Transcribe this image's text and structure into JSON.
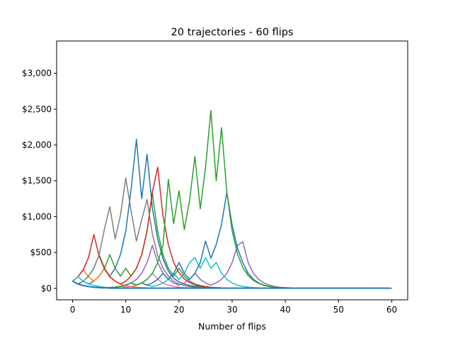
{
  "chart_data": {
    "type": "line",
    "title": "20 trajectories - 60 flips",
    "xlabel": "Number of flips",
    "ylabel": "",
    "xlim": [
      -3,
      63
    ],
    "ylim": [
      -160,
      3450
    ],
    "xticks": [
      0,
      10,
      20,
      30,
      40,
      50,
      60
    ],
    "yticks": [
      0,
      500,
      1000,
      1500,
      2000,
      2500,
      3000
    ],
    "ytick_labels": [
      "$0",
      "$500",
      "$1,000",
      "$1,500",
      "$2,000",
      "$2,500",
      "$3,000"
    ],
    "grid": false,
    "legend": false,
    "x": [
      0,
      1,
      2,
      3,
      4,
      5,
      6,
      7,
      8,
      9,
      10,
      11,
      12,
      13,
      14,
      15,
      16,
      17,
      18,
      19,
      20,
      21,
      22,
      23,
      24,
      25,
      26,
      27,
      28,
      29,
      30,
      31,
      32,
      33,
      34,
      35,
      36,
      37,
      38,
      39,
      40,
      41,
      42,
      43,
      44,
      45,
      46,
      47,
      48,
      49,
      50,
      51,
      52,
      53,
      54,
      55,
      56,
      57,
      58,
      59,
      60
    ],
    "series": [
      {
        "color": "#1f77b4",
        "values": [
          100,
          60,
          100,
          60,
          100,
          170,
          280,
          170,
          280,
          470,
          800,
          1380,
          2080,
          1250,
          1870,
          1120,
          690,
          410,
          240,
          140,
          90,
          60,
          40,
          30,
          20,
          15,
          10,
          10,
          6,
          5,
          4,
          3,
          3,
          2,
          2,
          2,
          1,
          1,
          1,
          1,
          1,
          1,
          1,
          1,
          0,
          0,
          0,
          0,
          0,
          0,
          0,
          0,
          0,
          0,
          0,
          0,
          0,
          0,
          0,
          0,
          0
        ]
      },
      {
        "color": "#ff7f0e",
        "values": [
          100,
          160,
          260,
          160,
          100,
          170,
          280,
          170,
          100,
          60,
          40,
          25,
          15,
          10,
          6,
          4,
          3,
          2,
          2,
          1,
          1,
          1,
          1,
          1,
          1,
          1,
          1,
          1,
          1,
          1,
          1,
          1,
          1,
          1,
          1,
          1,
          0,
          0,
          0,
          0,
          0,
          0,
          0,
          0,
          0,
          0,
          0,
          0,
          0,
          0,
          0,
          0,
          0,
          0,
          0,
          0,
          0,
          0,
          0,
          0,
          0
        ]
      },
      {
        "color": "#2ca02c",
        "values": [
          100,
          60,
          100,
          170,
          280,
          470,
          280,
          470,
          280,
          170,
          280,
          170,
          280,
          470,
          800,
          1320,
          790,
          470,
          280,
          170,
          280,
          170,
          100,
          60,
          40,
          25,
          15,
          10,
          6,
          4,
          3,
          2,
          2,
          1,
          1,
          1,
          1,
          1,
          1,
          1,
          1,
          1,
          0,
          0,
          0,
          0,
          0,
          0,
          0,
          0,
          0,
          0,
          0,
          0,
          0,
          0,
          0,
          0,
          0,
          0,
          0
        ]
      },
      {
        "color": "#d62728",
        "values": [
          100,
          160,
          260,
          430,
          750,
          450,
          270,
          160,
          100,
          60,
          100,
          170,
          280,
          470,
          800,
          1340,
          1690,
          1010,
          610,
          360,
          220,
          130,
          80,
          50,
          30,
          20,
          12,
          8,
          5,
          3,
          2,
          2,
          1,
          1,
          1,
          1,
          1,
          1,
          1,
          1,
          1,
          0,
          0,
          0,
          0,
          0,
          0,
          0,
          0,
          0,
          0,
          0,
          0,
          0,
          0,
          0,
          0,
          0,
          0,
          0,
          0
        ]
      },
      {
        "color": "#9467bd",
        "values": [
          100,
          60,
          40,
          25,
          15,
          10,
          6,
          10,
          16,
          27,
          45,
          75,
          125,
          210,
          360,
          600,
          360,
          210,
          125,
          75,
          45,
          75,
          125,
          210,
          125,
          75,
          45,
          75,
          125,
          210,
          360,
          600,
          650,
          360,
          210,
          125,
          75,
          45,
          25,
          15,
          10,
          6,
          4,
          2,
          1,
          1,
          1,
          1,
          1,
          1,
          1,
          1,
          1,
          1,
          1,
          1,
          0,
          0,
          0,
          0,
          0
        ]
      },
      {
        "color": "#8c564b",
        "values": [
          100,
          60,
          40,
          25,
          15,
          10,
          6,
          4,
          3,
          2,
          1,
          1,
          1,
          1,
          1,
          1,
          1,
          1,
          1,
          1,
          1,
          1,
          1,
          1,
          1,
          1,
          1,
          1,
          1,
          1,
          1,
          1,
          1,
          1,
          1,
          1,
          1,
          1,
          1,
          1,
          1,
          1,
          1,
          1,
          1,
          1,
          1,
          1,
          1,
          1,
          1,
          1,
          1,
          1,
          1,
          1,
          0,
          0,
          0,
          0,
          0
        ]
      },
      {
        "color": "#e377c2",
        "values": [
          100,
          60,
          40,
          25,
          15,
          10,
          6,
          10,
          16,
          27,
          16,
          27,
          45,
          75,
          125,
          210,
          125,
          75,
          45,
          27,
          16,
          10,
          6,
          4,
          3,
          2,
          1,
          1,
          1,
          1,
          1,
          1,
          1,
          1,
          1,
          1,
          1,
          1,
          1,
          1,
          1,
          1,
          1,
          1,
          1,
          1,
          1,
          1,
          1,
          1,
          1,
          1,
          1,
          1,
          1,
          1,
          1,
          1,
          1,
          0,
          0
        ]
      },
      {
        "color": "#7f7f7f",
        "values": [
          100,
          60,
          100,
          170,
          280,
          470,
          830,
          1140,
          690,
          1020,
          1540,
          1080,
          660,
          960,
          1240,
          760,
          460,
          280,
          170,
          100,
          60,
          40,
          25,
          15,
          10,
          6,
          4,
          3,
          2,
          1,
          1,
          1,
          1,
          1,
          1,
          1,
          1,
          1,
          1,
          1,
          1,
          1,
          1,
          1,
          1,
          1,
          1,
          1,
          1,
          1,
          1,
          1,
          1,
          1,
          1,
          1,
          1,
          1,
          1,
          1,
          0
        ]
      },
      {
        "color": "#bcbd22",
        "values": [
          100,
          60,
          40,
          25,
          15,
          10,
          6,
          4,
          3,
          2,
          1,
          1,
          1,
          1,
          1,
          1,
          1,
          1,
          1,
          1,
          1,
          1,
          1,
          1,
          1,
          1,
          1,
          1,
          1,
          1,
          1,
          1,
          1,
          1,
          1,
          1,
          1,
          1,
          1,
          1,
          1,
          1,
          1,
          1,
          1,
          1,
          1,
          1,
          1,
          1,
          1,
          1,
          1,
          1,
          1,
          1,
          1,
          1,
          1,
          1,
          0
        ]
      },
      {
        "color": "#17becf",
        "values": [
          100,
          160,
          100,
          60,
          40,
          25,
          15,
          10,
          16,
          27,
          45,
          75,
          45,
          75,
          45,
          27,
          45,
          75,
          125,
          210,
          125,
          210,
          360,
          430,
          280,
          430,
          280,
          360,
          210,
          125,
          75,
          45,
          27,
          16,
          10,
          6,
          4,
          3,
          2,
          1,
          1,
          1,
          1,
          1,
          1,
          1,
          1,
          1,
          1,
          1,
          1,
          1,
          1,
          1,
          1,
          1,
          1,
          1,
          1,
          1,
          0
        ]
      },
      {
        "color": "#1f77b4",
        "values": [
          100,
          60,
          40,
          25,
          15,
          10,
          6,
          10,
          16,
          27,
          45,
          75,
          45,
          75,
          45,
          75,
          125,
          210,
          125,
          210,
          360,
          210,
          125,
          210,
          360,
          660,
          420,
          610,
          890,
          1340,
          880,
          560,
          360,
          210,
          125,
          75,
          45,
          27,
          16,
          10,
          6,
          4,
          3,
          2,
          1,
          1,
          1,
          1,
          1,
          1,
          1,
          1,
          1,
          1,
          1,
          1,
          1,
          1,
          1,
          1,
          0
        ]
      },
      {
        "color": "#2ca02c",
        "values": [
          100,
          60,
          40,
          25,
          15,
          10,
          6,
          10,
          16,
          27,
          45,
          75,
          45,
          75,
          125,
          210,
          360,
          600,
          1520,
          900,
          1360,
          820,
          1230,
          1840,
          1110,
          1690,
          2480,
          1500,
          2240,
          1340,
          800,
          480,
          290,
          180,
          110,
          70,
          40,
          25,
          15,
          10,
          6,
          4,
          3,
          2,
          1,
          1,
          1,
          1,
          1,
          1,
          1,
          1,
          1,
          1,
          1,
          1,
          1,
          1,
          1,
          1,
          0
        ]
      },
      {
        "color": "#1f77b4",
        "values": [
          100,
          60,
          40,
          25,
          15,
          10,
          6,
          4,
          3,
          2,
          1,
          1,
          1,
          1,
          1,
          1,
          1,
          1,
          1,
          1,
          1,
          1,
          1,
          1,
          1,
          1,
          1,
          1,
          1,
          1,
          1,
          1,
          1,
          1,
          1,
          1,
          1,
          1,
          1,
          1,
          1,
          1,
          1,
          1,
          1,
          1,
          1,
          1,
          1,
          1,
          1,
          1,
          1,
          1,
          1,
          1,
          1,
          1,
          1,
          1,
          0
        ]
      },
      {
        "color": "#1f77b4",
        "values": [
          100,
          60,
          40,
          25,
          15,
          10,
          6,
          4,
          3,
          2,
          1,
          1,
          1,
          1,
          1,
          1,
          1,
          1,
          1,
          1,
          1,
          1,
          1,
          1,
          1,
          1,
          1,
          1,
          1,
          1,
          1,
          1,
          1,
          1,
          1,
          1,
          1,
          1,
          1,
          1,
          1,
          1,
          1,
          1,
          1,
          1,
          1,
          1,
          1,
          1,
          1,
          1,
          1,
          1,
          1,
          1,
          1,
          1,
          1,
          1,
          0
        ]
      },
      {
        "color": "#1f77b4",
        "values": [
          100,
          60,
          40,
          25,
          15,
          10,
          6,
          4,
          3,
          2,
          1,
          1,
          1,
          1,
          1,
          1,
          1,
          1,
          1,
          1,
          1,
          1,
          1,
          1,
          1,
          1,
          1,
          1,
          1,
          1,
          1,
          1,
          1,
          1,
          1,
          1,
          1,
          1,
          1,
          1,
          1,
          1,
          1,
          1,
          1,
          1,
          1,
          1,
          1,
          1,
          1,
          1,
          1,
          1,
          1,
          1,
          1,
          1,
          1,
          1,
          0
        ]
      },
      {
        "color": "#1f77b4",
        "values": [
          100,
          60,
          40,
          25,
          15,
          10,
          6,
          4,
          3,
          2,
          1,
          1,
          1,
          1,
          1,
          1,
          1,
          1,
          1,
          1,
          1,
          1,
          1,
          1,
          1,
          1,
          1,
          1,
          1,
          1,
          1,
          1,
          1,
          1,
          1,
          1,
          1,
          1,
          1,
          1,
          1,
          1,
          1,
          1,
          1,
          1,
          1,
          1,
          1,
          1,
          1,
          1,
          1,
          1,
          1,
          1,
          1,
          1,
          1,
          1,
          0
        ]
      },
      {
        "color": "#1f77b4",
        "values": [
          100,
          60,
          40,
          25,
          15,
          10,
          6,
          4,
          3,
          2,
          1,
          1,
          1,
          1,
          1,
          1,
          1,
          1,
          1,
          1,
          1,
          1,
          1,
          1,
          1,
          1,
          1,
          1,
          1,
          1,
          1,
          1,
          1,
          1,
          1,
          1,
          1,
          1,
          1,
          1,
          1,
          1,
          1,
          1,
          1,
          1,
          1,
          1,
          1,
          1,
          1,
          1,
          1,
          1,
          1,
          1,
          1,
          1,
          1,
          1,
          0
        ]
      },
      {
        "color": "#1f77b4",
        "values": [
          100,
          60,
          40,
          25,
          15,
          10,
          6,
          4,
          3,
          2,
          1,
          1,
          1,
          1,
          1,
          1,
          1,
          1,
          1,
          1,
          1,
          1,
          1,
          1,
          1,
          1,
          1,
          1,
          1,
          1,
          1,
          1,
          1,
          1,
          1,
          1,
          1,
          1,
          1,
          1,
          1,
          1,
          1,
          1,
          1,
          1,
          1,
          1,
          1,
          1,
          1,
          1,
          1,
          1,
          1,
          1,
          1,
          1,
          1,
          1,
          0
        ]
      },
      {
        "color": "#1f77b4",
        "values": [
          100,
          60,
          40,
          25,
          15,
          10,
          6,
          4,
          3,
          2,
          1,
          1,
          1,
          1,
          1,
          1,
          1,
          1,
          1,
          1,
          1,
          1,
          1,
          1,
          1,
          1,
          1,
          1,
          1,
          1,
          1,
          1,
          1,
          1,
          1,
          1,
          1,
          1,
          1,
          1,
          1,
          1,
          1,
          1,
          1,
          1,
          1,
          1,
          1,
          1,
          1,
          1,
          1,
          1,
          1,
          1,
          1,
          1,
          1,
          1,
          0
        ]
      },
      {
        "color": "#1f77b4",
        "values": [
          100,
          60,
          40,
          25,
          15,
          10,
          6,
          4,
          3,
          2,
          1,
          1,
          1,
          1,
          1,
          1,
          1,
          1,
          1,
          1,
          1,
          1,
          1,
          1,
          1,
          1,
          1,
          1,
          1,
          1,
          1,
          1,
          1,
          1,
          1,
          1,
          1,
          1,
          1,
          1,
          1,
          1,
          1,
          1,
          1,
          1,
          1,
          1,
          1,
          1,
          1,
          1,
          1,
          1,
          1,
          1,
          1,
          1,
          1,
          1,
          0
        ]
      }
    ]
  }
}
